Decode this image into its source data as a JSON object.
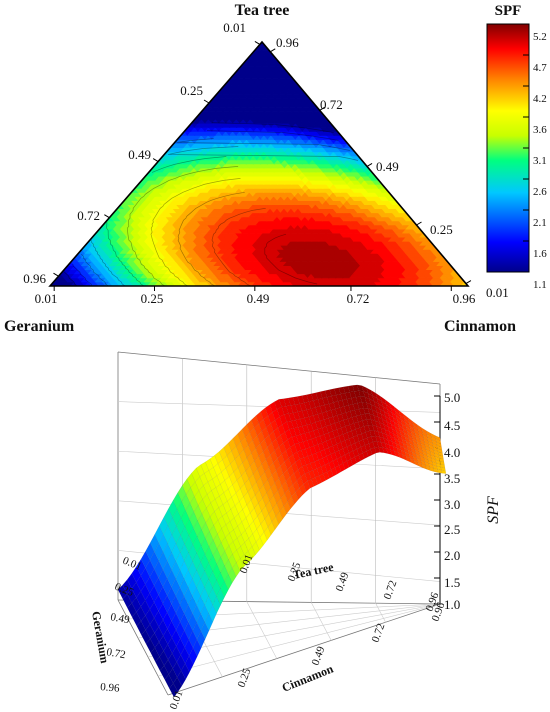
{
  "chart_data": [
    {
      "type": "ternary-contour",
      "components": {
        "top": "Tea tree",
        "left": "Geranium",
        "right": "Cinnamon"
      },
      "tick_values": [
        0.01,
        0.25,
        0.49,
        0.72,
        0.96
      ],
      "tick_labels": {
        "left_edge": [
          "0.01",
          "0.25",
          "0.49",
          "0.72",
          "0.96"
        ],
        "right_edge": [
          "0.96",
          "0.72",
          "0.49",
          "0.25",
          "0.01"
        ],
        "bottom_edge": [
          "0.01",
          "0.25",
          "0.49",
          "0.72",
          "0.96"
        ]
      },
      "z": {
        "name": "SPF",
        "min": 1.1,
        "max": 5.2,
        "colorbar_ticks": [
          "5.2",
          "4.7",
          "4.2",
          "3.6",
          "3.1",
          "2.6",
          "2.1",
          "1.6",
          "1.1"
        ]
      },
      "optimum": {
        "Geranium": 0.3,
        "Tea tree": 0.15,
        "Cinnamon": 0.55,
        "SPF": 5.2
      },
      "colormap": "jet",
      "contour_levels": 30
    },
    {
      "type": "surface-3d",
      "xaxis": {
        "label": "Cinnamon",
        "tick_labels": [
          "0.01",
          "0.25",
          "0.49",
          "0.72",
          "0.96"
        ]
      },
      "yaxis": {
        "label": "Tea tree",
        "tick_labels": [
          "0.01",
          "0.25",
          "0.49",
          "0.72",
          "0.96"
        ]
      },
      "waxis": {
        "label": "Geranium",
        "tick_labels": [
          "0.01",
          "0.25",
          "0.49",
          "0.72",
          "0.96"
        ]
      },
      "zaxis": {
        "label": "SPF",
        "range": [
          1.0,
          5.0
        ],
        "tick_labels": [
          "1.0",
          "1.5",
          "2.0",
          "2.5",
          "3.0",
          "3.5",
          "4.0",
          "4.5",
          "5.0"
        ]
      },
      "surface_profile": {
        "x_fraction": [
          0,
          0.25,
          0.5,
          0.75,
          1.0
        ],
        "spf": [
          1.2,
          3.6,
          4.9,
          5.2,
          4.2
        ]
      },
      "colormap": "jet"
    }
  ]
}
